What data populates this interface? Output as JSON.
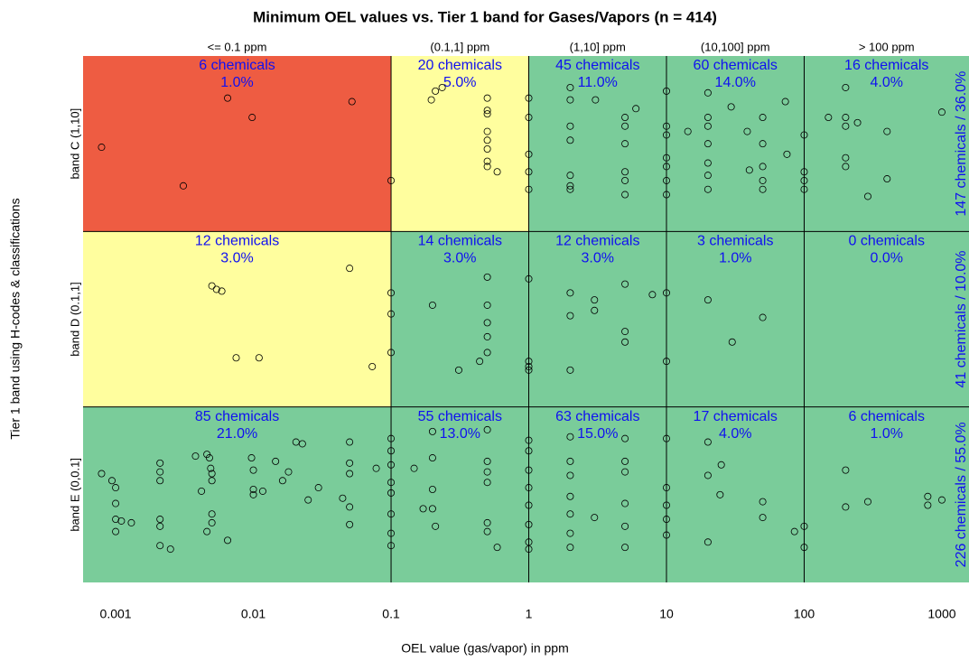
{
  "chart_data": {
    "type": "scatter",
    "title": "Minimum OEL values vs. Tier 1 band for Gases/Vapors (n = 414)",
    "x_label": "OEL value (gas/vapor) in ppm",
    "y_label": "Tier 1 band using H-codes & classifications",
    "log_x": true,
    "xlim": [
      0.00058,
      1574
    ],
    "xticks": [
      0.001,
      0.01,
      0.1,
      1,
      10,
      100,
      1000
    ],
    "ylim": [
      0.5,
      3.5
    ],
    "yticks": [
      {
        "value": 1,
        "label": "band E (0,0.1]"
      },
      {
        "value": 2,
        "label": "band D (0.1,1]"
      },
      {
        "value": 3,
        "label": "band C (1,10]"
      }
    ],
    "column_breaks": [
      0.1,
      1,
      10,
      100
    ],
    "row_breaks": [
      1.5,
      2.5
    ],
    "columns": [
      "<= 0.1 ppm",
      "(0.1,1] ppm",
      "(1,10] ppm",
      "(10,100] ppm",
      "> 100 ppm"
    ],
    "cells": [
      [
        {
          "count": "85 chemicals",
          "pct": "21.0%",
          "color": "#7acc9a"
        },
        {
          "count": "55 chemicals",
          "pct": "13.0%",
          "color": "#7acc9a"
        },
        {
          "count": "63 chemicals",
          "pct": "15.0%",
          "color": "#7acc9a"
        },
        {
          "count": "17 chemicals",
          "pct": "4.0%",
          "color": "#7acc9a"
        },
        {
          "count": "6 chemicals",
          "pct": "1.0%",
          "color": "#7acc9a"
        }
      ],
      [
        {
          "count": "12 chemicals",
          "pct": "3.0%",
          "color": "#fffe9e"
        },
        {
          "count": "14 chemicals",
          "pct": "3.0%",
          "color": "#7acc9a"
        },
        {
          "count": "12 chemicals",
          "pct": "3.0%",
          "color": "#7acc9a"
        },
        {
          "count": "3 chemicals",
          "pct": "1.0%",
          "color": "#7acc9a"
        },
        {
          "count": "0 chemicals",
          "pct": "0.0%",
          "color": "#7acc9a"
        }
      ],
      [
        {
          "count": "6 chemicals",
          "pct": "1.0%",
          "color": "#ee5c42"
        },
        {
          "count": "20 chemicals",
          "pct": "5.0%",
          "color": "#fffe9e"
        },
        {
          "count": "45 chemicals",
          "pct": "11.0%",
          "color": "#7acc9a"
        },
        {
          "count": "60 chemicals",
          "pct": "14.0%",
          "color": "#7acc9a"
        },
        {
          "count": "16 chemicals",
          "pct": "4.0%",
          "color": "#7acc9a"
        }
      ]
    ],
    "row_totals": [
      "226 chemicals / 55.0%",
      "41 chemicals / 10.0%",
      "147 chemicals / 36.0%"
    ],
    "label_color": "#1010f0",
    "marker_color": "#000000",
    "x": [
      0.00079,
      0.0031,
      0.0065,
      0.0098,
      0.052,
      0.1,
      0.196,
      0.21,
      0.235,
      0.5,
      0.5,
      0.5,
      0.5,
      0.5,
      0.5,
      0.5,
      0.59,
      0.5,
      1,
      1,
      1,
      1,
      1,
      2,
      2,
      2,
      2,
      2,
      2,
      2,
      3.05,
      5,
      5,
      5,
      5,
      5,
      5,
      6,
      10,
      10,
      10,
      10,
      10,
      10,
      10,
      14.3,
      20,
      20,
      20,
      20,
      20,
      20,
      20,
      29.5,
      38.6,
      50,
      50,
      50,
      50,
      50,
      40,
      73,
      75,
      100,
      100,
      100,
      100,
      150,
      200,
      200,
      200,
      200,
      200,
      244,
      290,
      400,
      400,
      1000,
      0.005,
      0.0054,
      0.0059,
      0.05,
      0.0075,
      0.011,
      0.073,
      0.1,
      0.1,
      0.1,
      0.2,
      0.31,
      0.44,
      0.5,
      0.5,
      0.5,
      0.5,
      0.5,
      1,
      1,
      1,
      1,
      2,
      2,
      2,
      3,
      3,
      5,
      5,
      5,
      7.9,
      10,
      10,
      20,
      30,
      50,
      0.00079,
      0.00094,
      0.001,
      0.001,
      0.001,
      0.001,
      0.0011,
      0.0013,
      0.0021,
      0.0021,
      0.0021,
      0.0021,
      0.0021,
      0.0021,
      0.0025,
      0.0038,
      0.0042,
      0.0046,
      0.0048,
      0.0049,
      0.005,
      0.005,
      0.005,
      0.005,
      0.0046,
      0.0065,
      0.0097,
      0.01,
      0.01,
      0.01,
      0.0117,
      0.0145,
      0.0163,
      0.018,
      0.0204,
      0.0227,
      0.025,
      0.0297,
      0.0445,
      0.05,
      0.05,
      0.05,
      0.05,
      0.05,
      0.078,
      0.1,
      0.1,
      0.1,
      0.1,
      0.1,
      0.1,
      0.1,
      0.1,
      0.147,
      0.171,
      0.2,
      0.2,
      0.2,
      0.2,
      0.21,
      0.5,
      0.5,
      0.5,
      0.5,
      0.5,
      0.5,
      0.59,
      1,
      1,
      1,
      1,
      1,
      1,
      1,
      1,
      2,
      2,
      2,
      2,
      2,
      2,
      2,
      3,
      5,
      5,
      5,
      5,
      5,
      5,
      10,
      10,
      10,
      10,
      10,
      20,
      20,
      20,
      24.5,
      25,
      50,
      50,
      85,
      100,
      100,
      200,
      200,
      290,
      790,
      790,
      1000
    ],
    "values": [
      2.98,
      2.76,
      3.26,
      3.15,
      3.24,
      2.79,
      3.25,
      3.3,
      3.32,
      3.26,
      3.19,
      3.17,
      3.07,
      2.97,
      2.9,
      2.87,
      2.84,
      3.02,
      3.26,
      3.15,
      2.94,
      2.84,
      2.74,
      3.32,
      3.25,
      3.1,
      3.02,
      2.82,
      2.76,
      2.74,
      3.25,
      3.15,
      3.1,
      3.0,
      2.84,
      2.79,
      2.71,
      3.2,
      3.3,
      3.1,
      3.05,
      2.92,
      2.87,
      2.79,
      2.71,
      3.07,
      3.29,
      3.15,
      3.1,
      3.0,
      2.89,
      2.82,
      2.74,
      3.21,
      3.07,
      3.15,
      3.0,
      2.87,
      2.79,
      2.74,
      2.85,
      3.24,
      2.94,
      3.05,
      2.84,
      2.79,
      2.74,
      3.15,
      3.32,
      3.15,
      3.1,
      2.92,
      2.87,
      3.12,
      2.7,
      3.07,
      2.8,
      3.18,
      2.19,
      2.17,
      2.16,
      2.29,
      1.78,
      1.78,
      1.73,
      2.15,
      2.03,
      1.81,
      2.08,
      1.71,
      1.76,
      2.24,
      2.08,
      1.98,
      1.9,
      1.81,
      2.23,
      1.76,
      1.73,
      1.71,
      1.71,
      2.15,
      2.02,
      2.11,
      2.05,
      2.2,
      1.93,
      1.87,
      2.14,
      2.15,
      1.76,
      2.11,
      1.87,
      2.01,
      1.12,
      1.08,
      1.04,
      0.95,
      0.86,
      0.79,
      0.85,
      0.84,
      1.18,
      1.13,
      1.08,
      0.86,
      0.82,
      0.71,
      0.69,
      1.22,
      1.02,
      1.23,
      1.21,
      1.15,
      1.12,
      1.08,
      0.89,
      0.84,
      0.79,
      0.74,
      1.21,
      1.14,
      1.03,
      1.0,
      1.02,
      1.19,
      1.08,
      1.13,
      1.3,
      1.29,
      0.97,
      1.04,
      0.98,
      1.3,
      1.18,
      1.12,
      0.93,
      0.83,
      1.15,
      1.32,
      1.25,
      1.17,
      1.07,
      1.01,
      0.89,
      0.78,
      0.71,
      1.15,
      0.92,
      1.36,
      1.21,
      1.03,
      0.92,
      0.82,
      1.37,
      1.19,
      1.13,
      1.07,
      0.84,
      0.79,
      0.7,
      1.31,
      1.25,
      1.14,
      1.04,
      0.94,
      0.83,
      0.73,
      0.69,
      1.33,
      1.19,
      1.11,
      0.99,
      0.89,
      0.78,
      0.7,
      0.87,
      1.32,
      1.19,
      1.13,
      0.95,
      0.82,
      0.7,
      1.32,
      1.04,
      0.94,
      0.86,
      0.77,
      1.3,
      1.11,
      0.73,
      1.0,
      1.17,
      0.96,
      0.87,
      0.79,
      0.82,
      0.7,
      1.14,
      0.93,
      0.96,
      0.99,
      0.94,
      0.97
    ]
  }
}
